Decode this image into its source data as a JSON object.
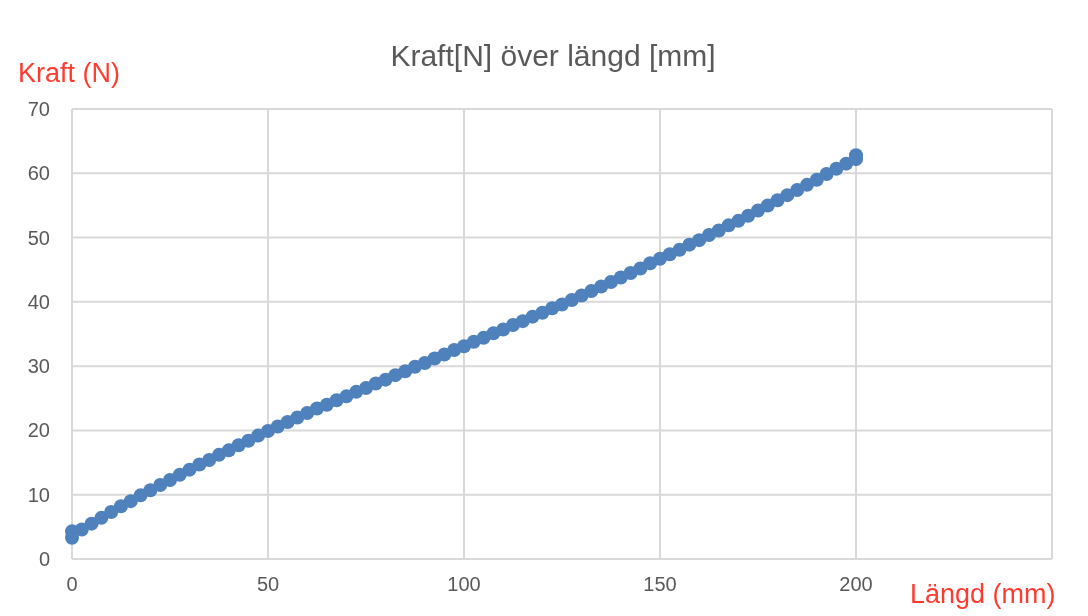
{
  "chart_data": {
    "type": "scatter",
    "title": "Kraft[N] över längd [mm]",
    "xlabel": "Längd (mm)",
    "ylabel": "Kraft (N)",
    "x": [
      0,
      0,
      2.5,
      5,
      7.5,
      10,
      12.5,
      15,
      17.5,
      20,
      22.5,
      25,
      27.5,
      30,
      32.5,
      35,
      37.5,
      40,
      42.5,
      45,
      47.5,
      50,
      52.5,
      55,
      57.5,
      60,
      62.5,
      65,
      67.5,
      70,
      72.5,
      75,
      77.5,
      80,
      82.5,
      85,
      87.5,
      90,
      92.5,
      95,
      97.5,
      100,
      102.5,
      105,
      107.5,
      110,
      112.5,
      115,
      117.5,
      120,
      122.5,
      125,
      127.5,
      130,
      132.5,
      135,
      137.5,
      140,
      142.5,
      145,
      147.5,
      150,
      152.5,
      155,
      157.5,
      160,
      162.5,
      165,
      167.5,
      170,
      172.5,
      175,
      177.5,
      180,
      182.5,
      185,
      187.5,
      190,
      192.5,
      195,
      197.5,
      200,
      200
    ],
    "series": [
      {
        "color": "#4f81bd",
        "values": [
          3.3,
          4.3,
          4.6,
          5.5,
          6.4,
          7.3,
          8.2,
          9,
          9.9,
          10.7,
          11.5,
          12.3,
          13.1,
          13.9,
          14.7,
          15.4,
          16.2,
          16.9,
          17.7,
          18.4,
          19.2,
          19.9,
          20.6,
          21.3,
          22,
          22.7,
          23.4,
          24,
          24.7,
          25.3,
          26,
          26.6,
          27.3,
          27.9,
          28.6,
          29.2,
          29.9,
          30.5,
          31.2,
          31.8,
          32.5,
          33.1,
          33.8,
          34.4,
          35.1,
          35.7,
          36.4,
          37,
          37.7,
          38.3,
          39,
          39.6,
          40.3,
          41,
          41.7,
          42.4,
          43.1,
          43.8,
          44.5,
          45.2,
          46,
          46.7,
          47.4,
          48.1,
          48.9,
          49.6,
          50.4,
          51.1,
          51.9,
          52.6,
          53.4,
          54.2,
          55,
          55.8,
          56.6,
          57.4,
          58.2,
          59,
          59.9,
          60.7,
          61.5,
          62.2,
          62.8
        ]
      }
    ],
    "xlim": [
      0,
      250
    ],
    "xticks": [
      0,
      50,
      100,
      150,
      200,
      {
        "value": 250,
        "label": null
      }
    ],
    "ylim": [
      0,
      70
    ],
    "yticks": [
      0,
      10,
      20,
      30,
      40,
      50,
      60,
      70
    ],
    "grid": true,
    "marker": "circle"
  }
}
